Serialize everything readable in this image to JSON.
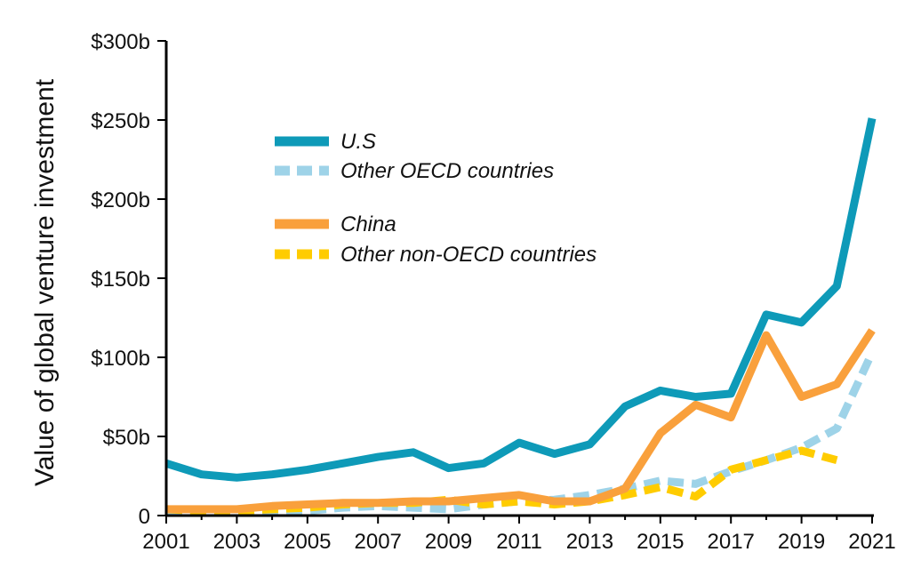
{
  "chart_data": {
    "type": "line",
    "title": "",
    "xlabel": "",
    "ylabel": "Value of global venture investment",
    "x": [
      2001,
      2002,
      2003,
      2004,
      2005,
      2006,
      2007,
      2008,
      2009,
      2010,
      2011,
      2012,
      2013,
      2014,
      2015,
      2016,
      2017,
      2018,
      2019,
      2020,
      2021
    ],
    "x_ticks": [
      "2001",
      "2003",
      "2005",
      "2007",
      "2009",
      "2011",
      "2013",
      "2015",
      "2017",
      "2019",
      "2021"
    ],
    "ylim": [
      0,
      300
    ],
    "y_ticks": [
      {
        "value": 0,
        "label": "0"
      },
      {
        "value": 50,
        "label": "$50b"
      },
      {
        "value": 100,
        "label": "$100b"
      },
      {
        "value": 150,
        "label": "$150b"
      },
      {
        "value": 200,
        "label": "$200b"
      },
      {
        "value": 250,
        "label": "$250b"
      },
      {
        "value": 300,
        "label": "$300b"
      }
    ],
    "grid": false,
    "legend_position": "top-left",
    "series": [
      {
        "name": "U.S",
        "color": "#0e9ab8",
        "style": "solid",
        "values": [
          33,
          26,
          24,
          26,
          29,
          33,
          37,
          40,
          30,
          33,
          46,
          39,
          45,
          69,
          79,
          75,
          77,
          127,
          122,
          145,
          251
        ]
      },
      {
        "name": "Other OECD countries",
        "color": "#9ed3e8",
        "style": "dashed",
        "values": [
          2,
          2,
          2,
          3,
          3,
          5,
          6,
          5,
          4,
          7,
          9,
          10,
          13,
          17,
          22,
          20,
          28,
          35,
          43,
          55,
          103
        ]
      },
      {
        "name": "China",
        "color": "#f9a03c",
        "style": "solid",
        "values": [
          4,
          4,
          4,
          6,
          7,
          8,
          8,
          9,
          9,
          11,
          13,
          9,
          9,
          17,
          52,
          70,
          62,
          114,
          75,
          83,
          117
        ]
      },
      {
        "name": "Other non-OECD countries",
        "color": "#ffcc00",
        "style": "dashed",
        "values": [
          4,
          3,
          3,
          4,
          5,
          7,
          8,
          8,
          10,
          7,
          9,
          7,
          9,
          13,
          18,
          12,
          29,
          35,
          41,
          35,
          null
        ]
      }
    ]
  }
}
